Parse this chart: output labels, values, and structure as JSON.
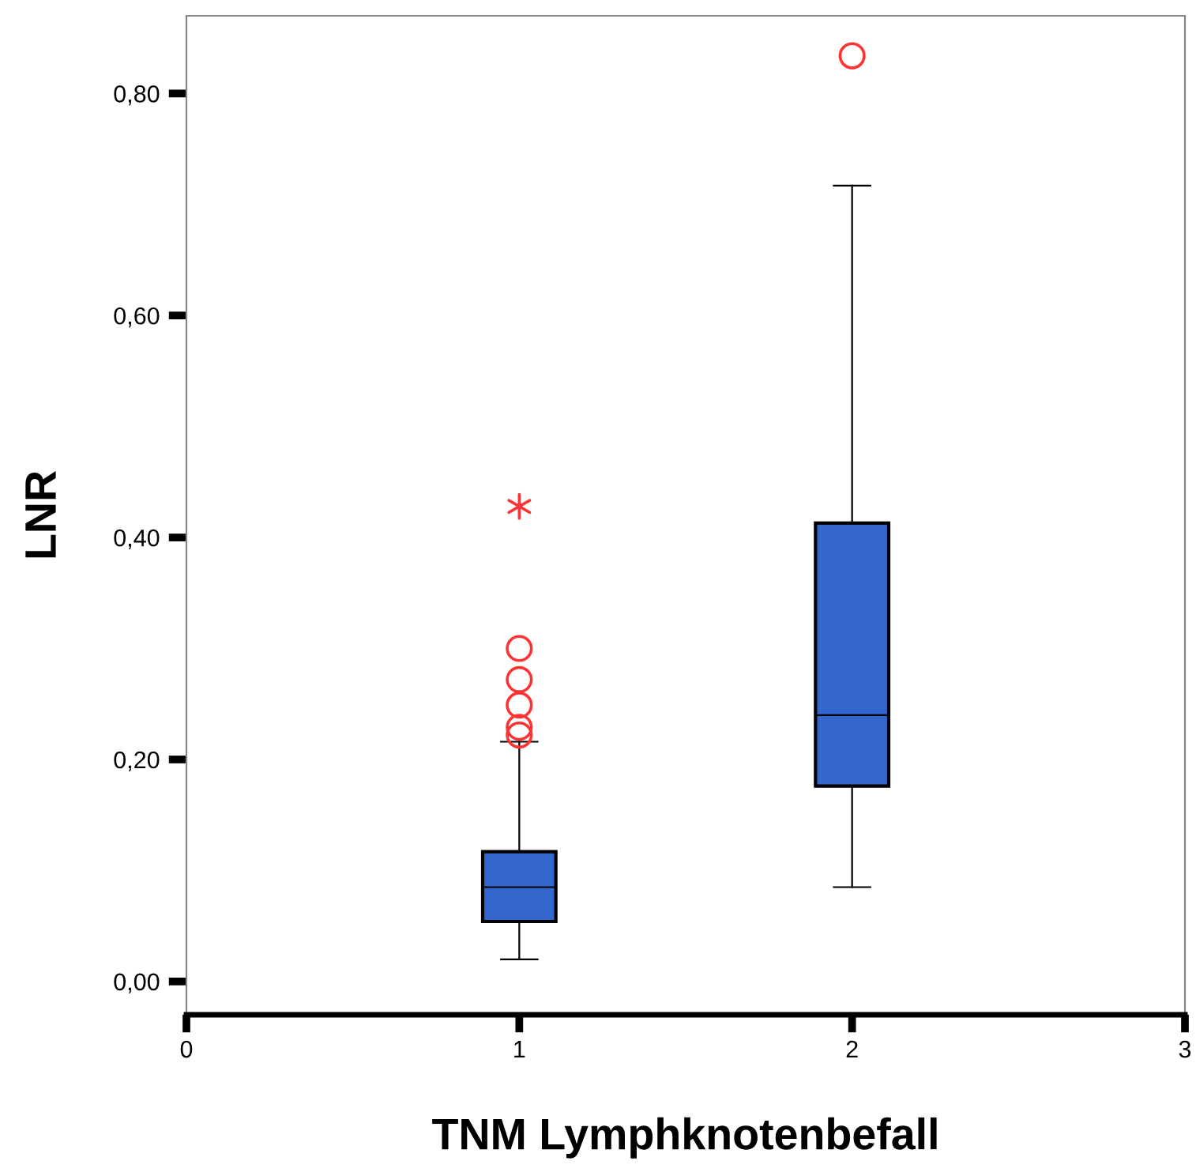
{
  "chart_data": {
    "type": "box",
    "xlabel": "TNM Lymphknotenbefall",
    "ylabel": "LNR",
    "x": [
      1,
      2
    ],
    "boxes": [
      {
        "low": 0.02,
        "q1": 0.054,
        "median": 0.085,
        "q3": 0.117,
        "high": 0.216,
        "outliers": [
          0.222,
          0.229,
          0.249,
          0.272,
          0.3
        ]
      },
      {
        "low": 0.085,
        "q1": 0.176,
        "median": 0.24,
        "q3": 0.413,
        "high": 0.717,
        "outliers": [
          0.834
        ]
      }
    ],
    "color": "#3366cc",
    "series": [
      {
        "type": "scatter",
        "x": [
          1
        ],
        "values": [
          0.428
        ],
        "color": "#ff3333",
        "marker": "cross"
      }
    ],
    "xlim": [
      0,
      3
    ],
    "xticks": [
      0,
      1,
      2,
      3
    ],
    "ylim": [
      -0.03,
      0.87
    ],
    "yticks": [
      {
        "value": 0,
        "label": "0,00"
      },
      {
        "value": 0.2,
        "label": "0,20"
      },
      {
        "value": 0.4,
        "label": "0,40"
      },
      {
        "value": 0.6,
        "label": "0,60"
      },
      {
        "value": 0.8,
        "label": "0,80"
      }
    ],
    "grid": false
  }
}
